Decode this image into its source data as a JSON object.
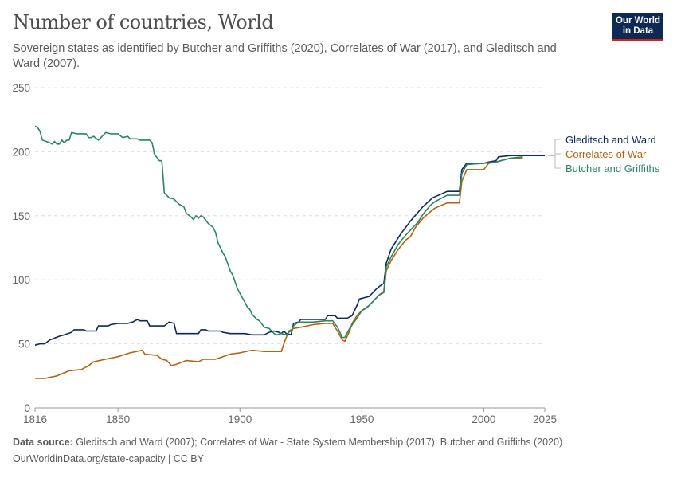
{
  "header": {
    "title": "Number of countries, World",
    "subtitle": "Sovereign states as identified by Butcher and Griffiths (2020), Correlates of War (2017), and Gleditsch and Ward (2007)."
  },
  "logo": {
    "line1": "Our World",
    "line2": "in Data"
  },
  "footer": {
    "source_label": "Data source:",
    "source": " Gleditsch and Ward (2007); Correlates of War - State System Membership (2017); Butcher and Griffiths (2020)",
    "link": "OurWorldinData.org/state-capacity | CC BY"
  },
  "chart_data": {
    "type": "line",
    "title": "Number of countries, World",
    "xlim": [
      1816,
      2025
    ],
    "ylim": [
      0,
      250
    ],
    "x_ticks": [
      "1816",
      "1850",
      "1900",
      "1950",
      "2000",
      "2025"
    ],
    "y_ticks": [
      "0",
      "50",
      "100",
      "150",
      "200",
      "250"
    ],
    "grid": "horizontal dashed",
    "legend": "right (line-end labels)",
    "series": [
      {
        "name": "Gleditsch and Ward",
        "color": "#0e2a54",
        "points": [
          [
            1816,
            49
          ],
          [
            1818,
            50
          ],
          [
            1820,
            50
          ],
          [
            1822,
            53
          ],
          [
            1826,
            56
          ],
          [
            1828,
            57
          ],
          [
            1831,
            59
          ],
          [
            1832,
            61
          ],
          [
            1836,
            61
          ],
          [
            1837,
            60
          ],
          [
            1841,
            60
          ],
          [
            1842,
            64
          ],
          [
            1846,
            64
          ],
          [
            1847,
            65
          ],
          [
            1850,
            66
          ],
          [
            1854,
            66
          ],
          [
            1856,
            67
          ],
          [
            1858,
            69
          ],
          [
            1859,
            68
          ],
          [
            1862,
            68
          ],
          [
            1863,
            64
          ],
          [
            1869,
            64
          ],
          [
            1871,
            67
          ],
          [
            1873,
            66
          ],
          [
            1874,
            58
          ],
          [
            1883,
            58
          ],
          [
            1884,
            61
          ],
          [
            1886,
            61
          ],
          [
            1887,
            60
          ],
          [
            1892,
            60
          ],
          [
            1893,
            59
          ],
          [
            1896,
            58
          ],
          [
            1902,
            58
          ],
          [
            1905,
            57
          ],
          [
            1910,
            57
          ],
          [
            1912,
            59
          ],
          [
            1914,
            60
          ],
          [
            1916,
            59
          ],
          [
            1917,
            58
          ],
          [
            1918,
            60
          ],
          [
            1919,
            58
          ],
          [
            1921,
            57
          ],
          [
            1922,
            66
          ],
          [
            1924,
            67
          ],
          [
            1925,
            69
          ],
          [
            1935,
            69
          ],
          [
            1936,
            72
          ],
          [
            1939,
            72
          ],
          [
            1940,
            70
          ],
          [
            1944,
            70
          ],
          [
            1946,
            72
          ],
          [
            1948,
            80
          ],
          [
            1949,
            85
          ],
          [
            1953,
            87
          ],
          [
            1956,
            93
          ],
          [
            1958,
            96
          ],
          [
            1959,
            97
          ],
          [
            1960,
            113
          ],
          [
            1962,
            124
          ],
          [
            1966,
            136
          ],
          [
            1970,
            146
          ],
          [
            1975,
            157
          ],
          [
            1979,
            164
          ],
          [
            1985,
            169
          ],
          [
            1990,
            169
          ],
          [
            1991,
            186
          ],
          [
            1993,
            191
          ],
          [
            2000,
            191
          ],
          [
            2002,
            192
          ],
          [
            2005,
            193
          ],
          [
            2006,
            196
          ],
          [
            2011,
            197
          ],
          [
            2025,
            197
          ]
        ]
      },
      {
        "name": "Correlates of War",
        "color": "#b16214",
        "points": [
          [
            1816,
            23
          ],
          [
            1820,
            23
          ],
          [
            1825,
            25
          ],
          [
            1830,
            29
          ],
          [
            1835,
            30
          ],
          [
            1838,
            33
          ],
          [
            1840,
            36
          ],
          [
            1845,
            38
          ],
          [
            1850,
            40
          ],
          [
            1855,
            43
          ],
          [
            1860,
            45
          ],
          [
            1861,
            42
          ],
          [
            1866,
            41
          ],
          [
            1868,
            38
          ],
          [
            1870,
            37
          ],
          [
            1872,
            33
          ],
          [
            1874,
            34
          ],
          [
            1878,
            37
          ],
          [
            1883,
            36
          ],
          [
            1885,
            38
          ],
          [
            1890,
            38
          ],
          [
            1893,
            40
          ],
          [
            1896,
            42
          ],
          [
            1900,
            43
          ],
          [
            1905,
            45
          ],
          [
            1910,
            44
          ],
          [
            1917,
            44
          ],
          [
            1918,
            50
          ],
          [
            1920,
            60
          ],
          [
            1922,
            62
          ],
          [
            1925,
            63
          ],
          [
            1930,
            65
          ],
          [
            1935,
            66
          ],
          [
            1938,
            66
          ],
          [
            1940,
            60
          ],
          [
            1942,
            53
          ],
          [
            1943,
            52
          ],
          [
            1945,
            60
          ],
          [
            1946,
            66
          ],
          [
            1948,
            72
          ],
          [
            1950,
            76
          ],
          [
            1952,
            78
          ],
          [
            1955,
            84
          ],
          [
            1957,
            88
          ],
          [
            1959,
            90
          ],
          [
            1960,
            107
          ],
          [
            1962,
            115
          ],
          [
            1965,
            124
          ],
          [
            1968,
            131
          ],
          [
            1970,
            134
          ],
          [
            1972,
            141
          ],
          [
            1975,
            148
          ],
          [
            1978,
            153
          ],
          [
            1980,
            156
          ],
          [
            1985,
            160
          ],
          [
            1990,
            160
          ],
          [
            1991,
            177
          ],
          [
            1993,
            186
          ],
          [
            2000,
            186
          ],
          [
            2002,
            191
          ],
          [
            2005,
            192
          ],
          [
            2011,
            195
          ],
          [
            2016,
            195
          ]
        ]
      },
      {
        "name": "Butcher and Griffiths",
        "color": "#2c8465",
        "points": [
          [
            1816,
            220
          ],
          [
            1817,
            219
          ],
          [
            1818,
            216
          ],
          [
            1819,
            209
          ],
          [
            1822,
            207
          ],
          [
            1823,
            206
          ],
          [
            1824,
            208
          ],
          [
            1825,
            206
          ],
          [
            1826,
            206
          ],
          [
            1827,
            209
          ],
          [
            1828,
            207
          ],
          [
            1829,
            209
          ],
          [
            1830,
            209
          ],
          [
            1831,
            215
          ],
          [
            1833,
            214
          ],
          [
            1837,
            214
          ],
          [
            1838,
            211
          ],
          [
            1839,
            211
          ],
          [
            1840,
            212
          ],
          [
            1842,
            209
          ],
          [
            1845,
            215
          ],
          [
            1847,
            214
          ],
          [
            1850,
            214
          ],
          [
            1852,
            211
          ],
          [
            1854,
            212
          ],
          [
            1855,
            210
          ],
          [
            1858,
            210
          ],
          [
            1859,
            209
          ],
          [
            1863,
            209
          ],
          [
            1864,
            207
          ],
          [
            1865,
            198
          ],
          [
            1867,
            193
          ],
          [
            1868,
            193
          ],
          [
            1869,
            168
          ],
          [
            1871,
            164
          ],
          [
            1873,
            163
          ],
          [
            1875,
            159
          ],
          [
            1877,
            157
          ],
          [
            1878,
            152
          ],
          [
            1880,
            149
          ],
          [
            1881,
            147
          ],
          [
            1882,
            150
          ],
          [
            1883,
            148
          ],
          [
            1884,
            150
          ],
          [
            1885,
            149
          ],
          [
            1887,
            144
          ],
          [
            1889,
            141
          ],
          [
            1890,
            137
          ],
          [
            1891,
            129
          ],
          [
            1893,
            121
          ],
          [
            1894,
            118
          ],
          [
            1896,
            107
          ],
          [
            1897,
            104
          ],
          [
            1899,
            93
          ],
          [
            1901,
            86
          ],
          [
            1903,
            79
          ],
          [
            1904,
            77
          ],
          [
            1905,
            73
          ],
          [
            1907,
            69
          ],
          [
            1908,
            68
          ],
          [
            1910,
            63
          ],
          [
            1912,
            62
          ],
          [
            1914,
            58
          ],
          [
            1915,
            57
          ],
          [
            1917,
            58
          ],
          [
            1919,
            57
          ],
          [
            1920,
            59
          ],
          [
            1921,
            60
          ],
          [
            1922,
            64
          ],
          [
            1924,
            67
          ],
          [
            1930,
            67
          ],
          [
            1935,
            68
          ],
          [
            1938,
            68
          ],
          [
            1940,
            63
          ],
          [
            1942,
            55
          ],
          [
            1943,
            55
          ],
          [
            1945,
            62
          ],
          [
            1948,
            70
          ],
          [
            1950,
            76
          ],
          [
            1953,
            80
          ],
          [
            1957,
            88
          ],
          [
            1959,
            91
          ],
          [
            1960,
            110
          ],
          [
            1962,
            118
          ],
          [
            1965,
            128
          ],
          [
            1968,
            135
          ],
          [
            1970,
            139
          ],
          [
            1973,
            145
          ],
          [
            1975,
            151
          ],
          [
            1978,
            158
          ],
          [
            1980,
            161
          ],
          [
            1985,
            166
          ],
          [
            1990,
            166
          ],
          [
            1991,
            183
          ],
          [
            1993,
            190
          ],
          [
            2000,
            191
          ],
          [
            2005,
            192
          ],
          [
            2011,
            195
          ],
          [
            2016,
            196
          ]
        ]
      }
    ]
  }
}
